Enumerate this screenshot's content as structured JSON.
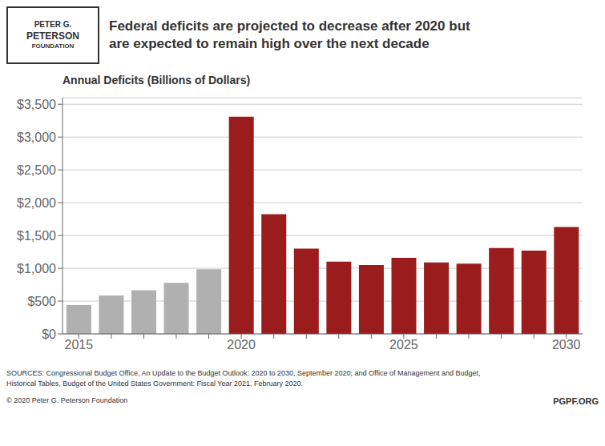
{
  "chart_data": {
    "type": "bar",
    "title": "Federal deficits are projected to decrease after 2020 but\nare expected to remain high over the next decade",
    "subtitle": "Annual Deficits (Billions of Dollars)",
    "categories": [
      "2015",
      null,
      null,
      null,
      null,
      "2020",
      null,
      null,
      null,
      null,
      "2025",
      null,
      null,
      null,
      null,
      "2030"
    ],
    "values": [
      439,
      585,
      665,
      779,
      984,
      3310,
      1825,
      1300,
      1100,
      1050,
      1160,
      1090,
      1070,
      1310,
      1270,
      1630
    ],
    "colors": [
      "#b0b0b0",
      "#b0b0b0",
      "#b0b0b0",
      "#b0b0b0",
      "#b0b0b0",
      "#9b1c1c",
      "#9b1c1c",
      "#9b1c1c",
      "#9b1c1c",
      "#9b1c1c",
      "#9b1c1c",
      "#9b1c1c",
      "#9b1c1c",
      "#9b1c1c",
      "#9b1c1c",
      "#9b1c1c"
    ],
    "ylim": [
      0,
      3600
    ],
    "yticks": [
      {
        "value": 0,
        "label": "$0"
      },
      {
        "value": 500,
        "label": "$500"
      },
      {
        "value": 1000,
        "label": "$1,000"
      },
      {
        "value": 1500,
        "label": "$1,500"
      },
      {
        "value": 2000,
        "label": "$2,000"
      },
      {
        "value": 2500,
        "label": "$2,500"
      },
      {
        "value": 3000,
        "label": "$3,000"
      },
      {
        "value": 3500,
        "label": "$3,500"
      }
    ],
    "grid": true,
    "annotations": [
      "PETER G.",
      "PETERSON",
      "FOUNDATION",
      "SOURCES: Congressional Budget Office, An Update to the Budget Outlook: 2020 to 2030, September 2020; and Office of Management and Budget,\nHistorical Tables, Budget of the United States Government: Fiscal Year 2021, February 2020.",
      "© 2020 Peter G. Peterson Foundation",
      "PGPF.ORG"
    ]
  }
}
